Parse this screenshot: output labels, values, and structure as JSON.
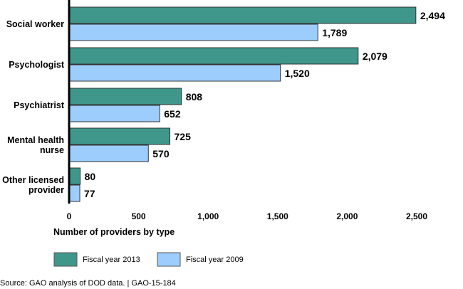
{
  "chart_data": {
    "type": "bar",
    "orientation": "horizontal",
    "categories": [
      [
        "Social worker"
      ],
      [
        "Psychologist"
      ],
      [
        "Psychiatrist"
      ],
      [
        "Mental health",
        "nurse"
      ],
      [
        "Other licensed",
        "provider"
      ]
    ],
    "series": [
      {
        "name": "Fiscal year 2013",
        "color": "#3f978b",
        "values": [
          2494,
          2079,
          808,
          725,
          80
        ],
        "labels": [
          "2,494",
          "2,079",
          "808",
          "725",
          "80"
        ]
      },
      {
        "name": "Fiscal year 2009",
        "color": "#9dcdfd",
        "values": [
          1789,
          1520,
          652,
          570,
          77
        ],
        "labels": [
          "1,789",
          "1,520",
          "652",
          "570",
          "77"
        ]
      }
    ],
    "xlim": [
      0,
      2500
    ],
    "xticks": [
      0,
      500,
      1000,
      1500,
      2000,
      2500
    ],
    "xtick_labels": [
      "0",
      "500",
      "1,000",
      "1,500",
      "2,000",
      "2,500"
    ],
    "xlabel": "Number of providers by type",
    "grid": false,
    "legend": "bottom-left"
  },
  "source": "Source: GAO analysis of DOD data.  |  GAO-15-184"
}
